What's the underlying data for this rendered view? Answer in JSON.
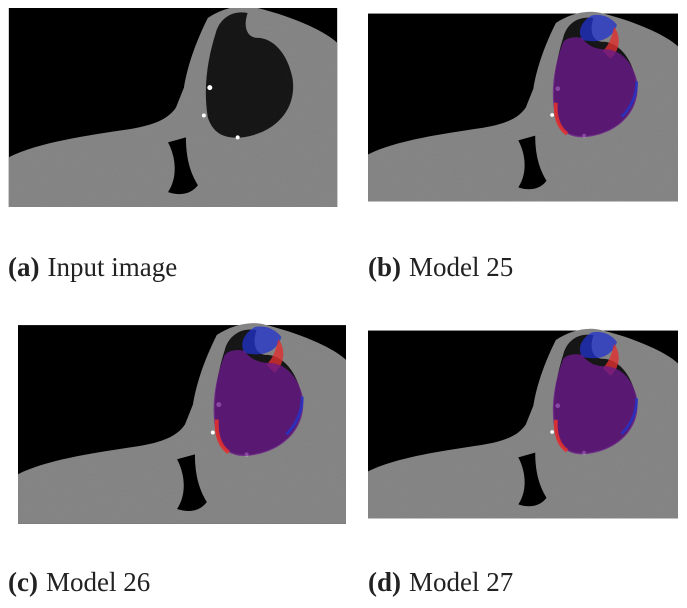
{
  "panels": [
    {
      "label": "(a)",
      "caption": "Input image"
    },
    {
      "label": "(b)",
      "caption": "Model 25"
    },
    {
      "label": "(c)",
      "caption": "Model 26"
    },
    {
      "label": "(d)",
      "caption": "Model 27"
    }
  ]
}
